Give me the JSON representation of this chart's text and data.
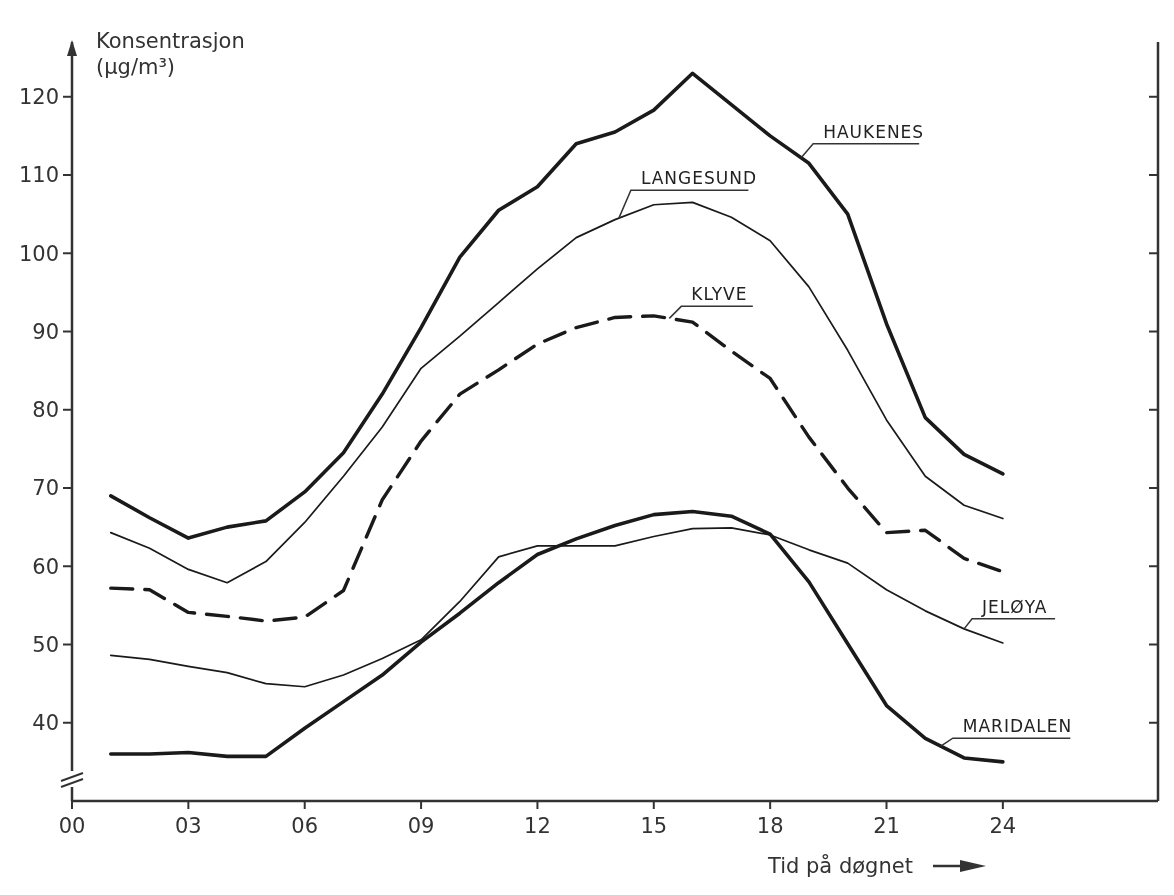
{
  "chart_data": {
    "type": "line",
    "ylabel": "Konsentrasjon\n(µg/m³)",
    "xlabel": "Tid på døgnet",
    "x": [
      1,
      2,
      3,
      4,
      5,
      6,
      7,
      8,
      9,
      10,
      11,
      12,
      13,
      14,
      15,
      16,
      17,
      18,
      19,
      20,
      21,
      22,
      23,
      24
    ],
    "xlim": [
      0,
      28
    ],
    "xticks": [
      {
        "value": 0,
        "label": "00"
      },
      {
        "value": 3,
        "label": "03"
      },
      {
        "value": 6,
        "label": "06"
      },
      {
        "value": 9,
        "label": "09"
      },
      12,
      15,
      18,
      21,
      24
    ],
    "ylim": [
      30,
      127
    ],
    "yticks": [
      40,
      50,
      60,
      70,
      80,
      90,
      100,
      110,
      120
    ],
    "grid": false,
    "marker": "none",
    "series": [
      {
        "name": "HAUKENES",
        "color": "#1a1a1a",
        "line_style": "solid",
        "values": [
          69,
          66.2,
          63.6,
          65,
          65.8,
          69.5,
          74.5,
          82,
          90.5,
          99.5,
          105.5,
          108.5,
          114,
          115.5,
          118.3,
          123,
          119,
          115,
          111.5,
          105,
          91,
          79,
          74.3,
          71.8
        ]
      },
      {
        "name": "LANGESUND",
        "color": "#1a1a1a",
        "line_style": "solid",
        "values": [
          64.3,
          62.3,
          59.6,
          57.9,
          60.6,
          65.6,
          71.5,
          77.8,
          85.3,
          89.4,
          93.7,
          98,
          102,
          104.3,
          106.2,
          106.5,
          104.6,
          101.6,
          95.7,
          87.6,
          78.7,
          71.5,
          67.8,
          66.1
        ]
      },
      {
        "name": "KLYVE",
        "color": "#1a1a1a",
        "line_style": "dashed",
        "values": [
          57.2,
          57,
          54.1,
          53.6,
          53,
          53.5,
          56.9,
          68.5,
          76,
          82,
          85.1,
          88.4,
          90.5,
          91.8,
          92,
          91.2,
          87.5,
          84,
          76.5,
          70,
          64.3,
          64.6,
          61,
          59.3
        ]
      },
      {
        "name": "JELØYA",
        "color": "#1a1a1a",
        "line_style": "solid",
        "values": [
          48.6,
          48.1,
          47.2,
          46.4,
          45,
          44.6,
          46.1,
          48.2,
          50.6,
          55.5,
          61.2,
          62.6,
          62.6,
          62.6,
          63.8,
          64.8,
          64.9,
          64,
          62.1,
          60.4,
          57,
          54.3,
          52,
          50.2
        ]
      },
      {
        "name": "MARIDALEN",
        "color": "#1a1a1a",
        "line_style": "solid",
        "values": [
          36,
          36,
          36.2,
          35.7,
          35.7,
          39.3,
          42.7,
          46.1,
          50.3,
          54,
          57.9,
          61.5,
          63.5,
          65.2,
          66.6,
          67,
          66.4,
          64.1,
          58,
          50.1,
          42.2,
          38,
          35.5,
          35
        ]
      }
    ]
  }
}
